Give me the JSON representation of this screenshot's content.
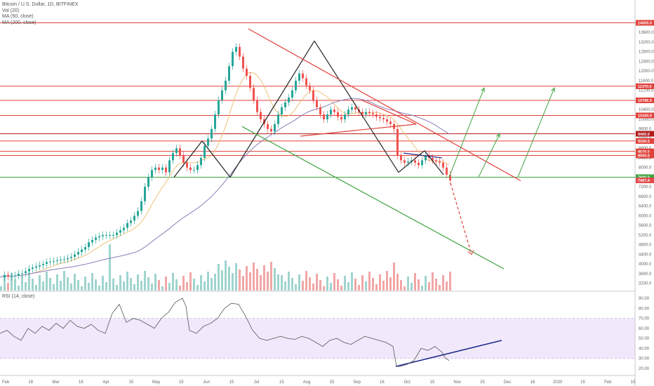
{
  "chart_data": {
    "type": "candlestick",
    "title": "Bitcoin / U.S. Dollar, 1D, BITFINEX",
    "indicators": [
      "Vol (20)",
      "MA (50, close)",
      "MA (200, close)"
    ],
    "rsi_label": "RSI (14, close)",
    "ylim": [
      2900,
      14800
    ],
    "y_ticks": [
      3200,
      3600,
      4000,
      4400,
      4800,
      5200,
      5600,
      6000,
      6400,
      6800,
      7200,
      7600,
      8000,
      8400,
      8800,
      9200,
      9600,
      10000,
      10400,
      10800,
      11200,
      11600,
      12000,
      12400,
      12800,
      13200,
      13600
    ],
    "y_tick_labels": [
      "3200.0",
      "3600.0",
      "4000.0",
      "4400.0",
      "4800.0",
      "5200.0",
      "5600.0",
      "6000.0",
      "6400.0",
      "6800.0",
      "7200.0",
      "7600.0",
      "8000.0",
      "8400.0",
      "8800.0",
      "9200.0",
      "9600.0",
      "10000.0",
      "10400.0",
      "10800.0",
      "11200.0",
      "11600.0",
      "12000.0",
      "12400.0",
      "12800.0",
      "13200.0",
      "13600.0"
    ],
    "price_levels": [
      {
        "value": 14000,
        "label": "14000.0",
        "color": "#e0413b"
      },
      {
        "value": 11370,
        "label": "11370.0",
        "color": "#e0413b"
      },
      {
        "value": 10786.5,
        "label": "10786.5",
        "color": "#e0413b"
      },
      {
        "value": 10160,
        "label": "10160.0",
        "color": "#e0413b"
      },
      {
        "value": 9400,
        "label": "9400.0",
        "color": "#b01a1a"
      },
      {
        "value": 9100,
        "label": "9100.0",
        "color": "#e0413b"
      },
      {
        "value": 8670,
        "label": "8670.0",
        "color": "#e0413b"
      },
      {
        "value": 8500,
        "label": "8500.0",
        "color": "#e0413b"
      },
      {
        "value": 7600,
        "label": "7600.0",
        "color": "#3fa33f"
      }
    ],
    "last_price": {
      "value": 7467.4,
      "label": "7467.4"
    },
    "x_ticks": [
      "Feb",
      "18",
      "Mar",
      "18",
      "Apr",
      "15",
      "May",
      "15",
      "Jun",
      "15",
      "Jul",
      "15",
      "Aug",
      "15",
      "Sep",
      "16",
      "Oct",
      "15",
      "Nov",
      "15",
      "Dec",
      "16",
      "2020",
      "15",
      "Feb",
      "15"
    ],
    "rsi_ticks": [
      20,
      30,
      40,
      50,
      60,
      70,
      80,
      90
    ],
    "rsi_tick_labels": [
      "20.00",
      "30.00",
      "40.00",
      "50.00",
      "60.00",
      "70.00",
      "80.00",
      "90.00"
    ],
    "rsi_band": [
      30,
      70
    ],
    "price_path": [
      [
        0,
        3450
      ],
      [
        5,
        3550
      ],
      [
        10,
        3480
      ],
      [
        15,
        3500
      ],
      [
        20,
        3520
      ],
      [
        25,
        3600
      ],
      [
        30,
        3620
      ],
      [
        35,
        3700
      ],
      [
        40,
        3800
      ],
      [
        45,
        3850
      ],
      [
        50,
        3900
      ],
      [
        55,
        3950
      ],
      [
        60,
        4000
      ],
      [
        65,
        4080
      ],
      [
        70,
        4100
      ],
      [
        75,
        4120
      ],
      [
        80,
        4150
      ],
      [
        85,
        4180
      ],
      [
        90,
        4200
      ],
      [
        95,
        4250
      ],
      [
        100,
        4300
      ],
      [
        105,
        4400
      ],
      [
        110,
        4500
      ],
      [
        115,
        4600
      ],
      [
        120,
        4700
      ],
      [
        125,
        4900
      ],
      [
        130,
        5000
      ],
      [
        135,
        5100
      ],
      [
        140,
        5150
      ],
      [
        145,
        5200
      ],
      [
        150,
        5200
      ],
      [
        155,
        5200
      ],
      [
        160,
        5200
      ],
      [
        165,
        5300
      ],
      [
        170,
        5400
      ],
      [
        175,
        5500
      ],
      [
        180,
        5700
      ],
      [
        185,
        5800
      ],
      [
        190,
        6000
      ],
      [
        195,
        6200
      ],
      [
        200,
        6600
      ],
      [
        205,
        7200
      ],
      [
        210,
        7600
      ],
      [
        215,
        7900
      ],
      [
        220,
        8000
      ],
      [
        225,
        7900
      ],
      [
        230,
        8000
      ],
      [
        235,
        7800
      ],
      [
        240,
        8300
      ],
      [
        245,
        8600
      ],
      [
        250,
        8800
      ],
      [
        255,
        8500
      ],
      [
        260,
        8200
      ],
      [
        265,
        8000
      ],
      [
        270,
        7900
      ],
      [
        275,
        7900
      ],
      [
        280,
        8100
      ],
      [
        285,
        8400
      ],
      [
        290,
        8900
      ],
      [
        295,
        9200
      ],
      [
        300,
        9600
      ],
      [
        305,
        10200
      ],
      [
        310,
        10800
      ],
      [
        315,
        11200
      ],
      [
        320,
        11600
      ],
      [
        325,
        12200
      ],
      [
        330,
        12800
      ],
      [
        335,
        13000
      ],
      [
        340,
        12600
      ],
      [
        345,
        12100
      ],
      [
        350,
        11800
      ],
      [
        355,
        11300
      ],
      [
        360,
        10800
      ],
      [
        365,
        10300
      ],
      [
        370,
        10000
      ],
      [
        375,
        9800
      ],
      [
        380,
        9600
      ],
      [
        385,
        9500
      ],
      [
        390,
        9800
      ],
      [
        395,
        10200
      ],
      [
        400,
        10500
      ],
      [
        405,
        10700
      ],
      [
        410,
        10900
      ],
      [
        415,
        11200
      ],
      [
        420,
        11600
      ],
      [
        425,
        11900
      ],
      [
        430,
        11700
      ],
      [
        435,
        11400
      ],
      [
        440,
        11200
      ],
      [
        445,
        10800
      ],
      [
        450,
        10500
      ],
      [
        455,
        10200
      ],
      [
        460,
        10000
      ],
      [
        465,
        10200
      ],
      [
        470,
        10400
      ],
      [
        475,
        10300
      ],
      [
        480,
        10100
      ],
      [
        485,
        10000
      ],
      [
        490,
        10200
      ],
      [
        495,
        10400
      ],
      [
        500,
        10500
      ],
      [
        505,
        10400
      ],
      [
        510,
        10300
      ],
      [
        515,
        10200
      ],
      [
        520,
        10300
      ],
      [
        525,
        10250
      ],
      [
        530,
        10200
      ],
      [
        535,
        10100
      ],
      [
        540,
        10050
      ],
      [
        545,
        10000
      ],
      [
        550,
        9900
      ],
      [
        555,
        9800
      ],
      [
        560,
        9600
      ],
      [
        565,
        8500
      ],
      [
        570,
        8300
      ],
      [
        575,
        8200
      ],
      [
        580,
        8250
      ],
      [
        585,
        8300
      ],
      [
        590,
        8200
      ],
      [
        595,
        8100
      ],
      [
        600,
        8300
      ],
      [
        605,
        8500
      ],
      [
        610,
        8400
      ],
      [
        615,
        8300
      ],
      [
        620,
        8250
      ],
      [
        625,
        8200
      ],
      [
        630,
        8000
      ],
      [
        635,
        7700
      ],
      [
        640,
        7467
      ]
    ],
    "rsi_path": [
      [
        0,
        55
      ],
      [
        10,
        58
      ],
      [
        20,
        52
      ],
      [
        30,
        48
      ],
      [
        40,
        60
      ],
      [
        50,
        55
      ],
      [
        60,
        62
      ],
      [
        70,
        58
      ],
      [
        80,
        65
      ],
      [
        90,
        60
      ],
      [
        100,
        68
      ],
      [
        110,
        62
      ],
      [
        120,
        60
      ],
      [
        130,
        64
      ],
      [
        140,
        58
      ],
      [
        150,
        55
      ],
      [
        160,
        75
      ],
      [
        170,
        84
      ],
      [
        180,
        66
      ],
      [
        190,
        70
      ],
      [
        200,
        68
      ],
      [
        210,
        64
      ],
      [
        220,
        60
      ],
      [
        230,
        70
      ],
      [
        240,
        76
      ],
      [
        250,
        86
      ],
      [
        260,
        90
      ],
      [
        265,
        82
      ],
      [
        270,
        58
      ],
      [
        280,
        55
      ],
      [
        290,
        62
      ],
      [
        300,
        65
      ],
      [
        310,
        70
      ],
      [
        320,
        80
      ],
      [
        330,
        85
      ],
      [
        340,
        84
      ],
      [
        350,
        72
      ],
      [
        360,
        58
      ],
      [
        370,
        50
      ],
      [
        380,
        48
      ],
      [
        390,
        50
      ],
      [
        400,
        52
      ],
      [
        410,
        50
      ],
      [
        420,
        49
      ],
      [
        430,
        52
      ],
      [
        440,
        50
      ],
      [
        450,
        46
      ],
      [
        460,
        42
      ],
      [
        470,
        48
      ],
      [
        480,
        50
      ],
      [
        490,
        46
      ],
      [
        500,
        44
      ],
      [
        510,
        48
      ],
      [
        520,
        52
      ],
      [
        530,
        50
      ],
      [
        540,
        48
      ],
      [
        550,
        46
      ],
      [
        560,
        42
      ],
      [
        565,
        22
      ],
      [
        570,
        22
      ],
      [
        580,
        24
      ],
      [
        590,
        28
      ],
      [
        600,
        40
      ],
      [
        610,
        38
      ],
      [
        620,
        42
      ],
      [
        630,
        36
      ],
      [
        635,
        30
      ],
      [
        640,
        28
      ]
    ],
    "annotation_lines": [
      {
        "from": [
          248,
          7600
        ],
        "to": [
          288,
          9100
        ],
        "color": "#222"
      },
      {
        "from": [
          288,
          9100
        ],
        "to": [
          328,
          7600
        ],
        "color": "#222"
      },
      {
        "from": [
          328,
          7600
        ],
        "to": [
          448,
          13250
        ],
        "color": "#222"
      },
      {
        "from": [
          448,
          13250
        ],
        "to": [
          568,
          7800
        ],
        "color": "#222"
      },
      {
        "from": [
          568,
          7800
        ],
        "to": [
          605,
          8700
        ],
        "color": "#222"
      },
      {
        "from": [
          605,
          8700
        ],
        "to": [
          632,
          7700
        ],
        "color": "#222"
      },
      {
        "from": [
          354,
          13750
        ],
        "to": [
          742,
          7450
        ],
        "color": "#e0413b"
      },
      {
        "from": [
          345,
          9700
        ],
        "to": [
          718,
          3800
        ],
        "color": "#3fa33f"
      },
      {
        "from": [
          428,
          9300
        ],
        "to": [
          593,
          9800
        ],
        "color": "#e0413b"
      },
      {
        "from": [
          515,
          10800
        ],
        "to": [
          593,
          9800
        ],
        "color": "#e0413b"
      },
      {
        "from": [
          564,
          22
        ],
        "to": [
          715,
          48
        ],
        "color": "#1d2a8c",
        "pane": "rsi"
      },
      {
        "from": [
          575,
          8600
        ],
        "to": [
          630,
          8400
        ],
        "color": "#1d2a8c"
      },
      {
        "from": [
          642,
          7350
        ],
        "to": [
          672,
          4400
        ],
        "color": "#e0413b",
        "dash": true
      }
    ],
    "arrows": [
      {
        "from": [
          640,
          7600
        ],
        "to": [
          690,
          11300
        ],
        "color": "#3fa33f"
      },
      {
        "from": [
          682,
          7600
        ],
        "to": [
          712,
          9400
        ],
        "color": "#3fa33f"
      },
      {
        "from": [
          738,
          7600
        ],
        "to": [
          790,
          11300
        ],
        "color": "#3fa33f"
      }
    ]
  }
}
